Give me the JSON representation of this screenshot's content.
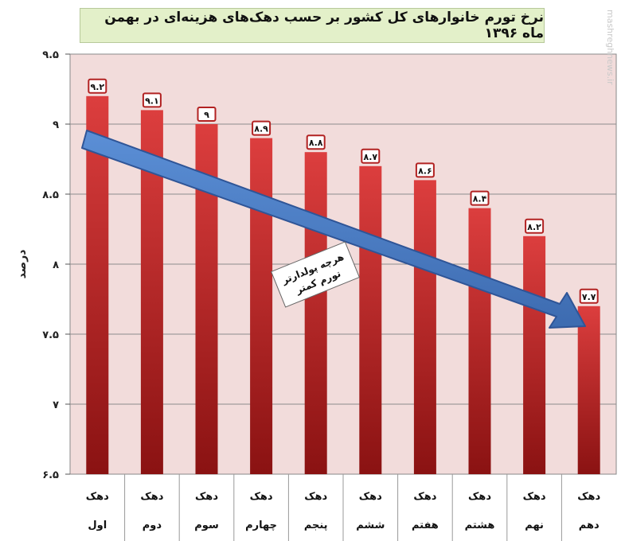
{
  "title": "نرخ تورم خانوارهای کل کشور بر حسب دهک‌های هزینه‌ای در بهمن ماه ۱۳۹۶",
  "watermark": "mashreghnews.ir",
  "annotation": "هرچه پولدارتر تورم کمتر",
  "chart_data": {
    "type": "bar",
    "ylabel": "درصد",
    "xlabel": "",
    "ylim": [
      6.5,
      9.5
    ],
    "yticks": [
      6.5,
      7,
      7.5,
      8,
      8.5,
      9,
      9.5
    ],
    "ytick_labels": [
      "۶.۵",
      "۷",
      "۷.۵",
      "۸",
      "۸.۵",
      "۹",
      "۹.۵"
    ],
    "grid": true,
    "categories": [
      "دهک اول",
      "دهک دوم",
      "دهک سوم",
      "دهک چهارم",
      "دهک پنجم",
      "دهک ششم",
      "دهک هفتم",
      "دهک هشتم",
      "دهک نهم",
      "دهک دهم"
    ],
    "category_lines": [
      [
        "دهک",
        "اول"
      ],
      [
        "دهک",
        "دوم"
      ],
      [
        "دهک",
        "سوم"
      ],
      [
        "دهک",
        "چهارم"
      ],
      [
        "دهک",
        "پنجم"
      ],
      [
        "دهک",
        "ششم"
      ],
      [
        "دهک",
        "هفتم"
      ],
      [
        "دهک",
        "هشتم"
      ],
      [
        "دهک",
        "نهم"
      ],
      [
        "دهک",
        "دهم"
      ]
    ],
    "values": [
      9.2,
      9.1,
      9.0,
      8.9,
      8.8,
      8.7,
      8.6,
      8.4,
      8.2,
      7.7
    ],
    "value_labels": [
      "۹.۲",
      "۹.۱",
      "۹",
      "۸.۹",
      "۸.۸",
      "۸.۷",
      "۸.۶",
      "۸.۴",
      "۸.۲",
      "۷.۷"
    ],
    "colors": {
      "bar_top": "#d83a3a",
      "bar_bottom": "#8a1212",
      "plot_bg": "#f2dcdb",
      "arrow": "#4a7cc4",
      "arrow_edge": "#2f5597"
    }
  }
}
